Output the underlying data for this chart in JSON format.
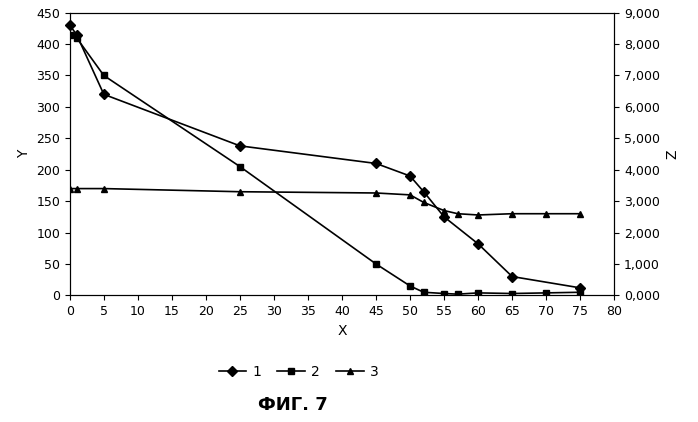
{
  "series1_x": [
    0,
    1,
    5,
    25,
    45,
    50,
    52,
    55,
    60,
    65,
    75
  ],
  "series1_y": [
    430,
    415,
    320,
    238,
    210,
    190,
    165,
    125,
    82,
    30,
    12
  ],
  "series2_x": [
    0,
    1,
    5,
    25,
    45,
    50,
    52,
    55,
    57,
    60,
    65,
    70,
    75
  ],
  "series2_y": [
    415,
    410,
    350,
    205,
    50,
    15,
    5,
    3,
    2,
    4,
    3,
    4,
    5
  ],
  "series3_x": [
    0,
    1,
    5,
    25,
    45,
    50,
    52,
    55,
    57,
    60,
    65,
    70,
    75
  ],
  "series3_y": [
    170,
    170,
    170,
    165,
    163,
    160,
    148,
    135,
    130,
    128,
    130,
    130,
    130
  ],
  "xlabel": "X",
  "ylabel": "Y",
  "zlabel": "Z",
  "xlim": [
    0,
    80
  ],
  "ylim": [
    0,
    450
  ],
  "zlim": [
    0,
    9000
  ],
  "xticks": [
    0,
    5,
    10,
    15,
    20,
    25,
    30,
    35,
    40,
    45,
    50,
    55,
    60,
    65,
    70,
    75,
    80
  ],
  "yticks": [
    0,
    50,
    100,
    150,
    200,
    250,
    300,
    350,
    400,
    450
  ],
  "zticks": [
    0,
    1000,
    2000,
    3000,
    4000,
    5000,
    6000,
    7000,
    8000,
    9000
  ],
  "ztick_labels": [
    "0,000",
    "1,000",
    "2,000",
    "3,000",
    "4,000",
    "5,000",
    "6,000",
    "7,000",
    "8,000",
    "9,000"
  ],
  "legend_labels": [
    "1",
    "2",
    "3"
  ],
  "line_color": "#000000",
  "marker1": "D",
  "marker2": "s",
  "marker3": "^",
  "markersize": 5,
  "linewidth": 1.2,
  "bg_color": "#ffffff",
  "font_caption": "ФИГ. 7"
}
